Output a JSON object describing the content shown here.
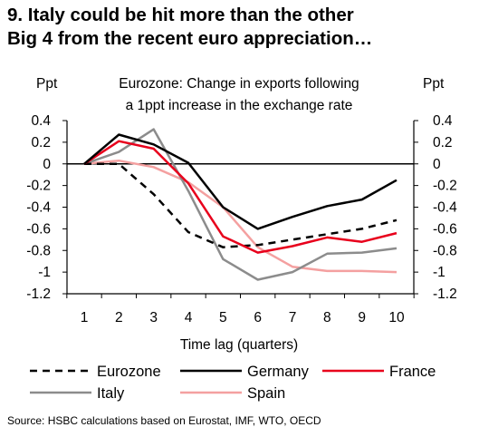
{
  "title_line1": "9. Italy could be hit more than the other",
  "title_line2": "Big 4 from the recent euro appreciation…",
  "source": "Source: HSBC calculations based on Eurostat, IMF, WTO, OECD",
  "chart_data": {
    "type": "line",
    "title_line1": "Eurozone: Change in exports following",
    "title_line2": "a 1ppt increase in the exchange rate",
    "xlabel": "Time lag (quarters)",
    "ylabel_left": "Ppt",
    "ylabel_right": "Ppt",
    "x": [
      1,
      2,
      3,
      4,
      5,
      6,
      7,
      8,
      9,
      10
    ],
    "x_tick_labels": [
      "1",
      "2",
      "3",
      "4",
      "5",
      "6",
      "7",
      "8",
      "9",
      "10"
    ],
    "ylim": [
      -1.2,
      0.4
    ],
    "y_ticks": [
      0.4,
      0.2,
      0,
      -0.2,
      -0.4,
      -0.6,
      -0.8,
      -1,
      -1.2
    ],
    "y_tick_labels": [
      "0.4",
      "0.2",
      "0",
      "-0.2",
      "-0.4",
      "-0.6",
      "-0.8",
      "-1",
      "-1.2"
    ],
    "grid": false,
    "legend_position": "bottom",
    "series": [
      {
        "name": "Eurozone",
        "color": "#000000",
        "style": "dashed",
        "values": [
          0,
          0.0,
          -0.28,
          -0.63,
          -0.77,
          -0.75,
          -0.7,
          -0.65,
          -0.6,
          -0.52
        ]
      },
      {
        "name": "Germany",
        "color": "#000000",
        "style": "solid",
        "values": [
          0,
          0.27,
          0.18,
          0.01,
          -0.4,
          -0.6,
          -0.49,
          -0.39,
          -0.33,
          -0.15
        ]
      },
      {
        "name": "France",
        "color": "#e8001c",
        "style": "solid",
        "values": [
          0,
          0.21,
          0.14,
          -0.18,
          -0.67,
          -0.82,
          -0.76,
          -0.68,
          -0.72,
          -0.64
        ]
      },
      {
        "name": "Italy",
        "color": "#8c8c8c",
        "style": "solid",
        "values": [
          0,
          0.11,
          0.32,
          -0.25,
          -0.88,
          -1.07,
          -1.0,
          -0.83,
          -0.82,
          -0.78
        ]
      },
      {
        "name": "Spain",
        "color": "#f4a0a0",
        "style": "solid",
        "values": [
          0,
          0.03,
          -0.03,
          -0.17,
          -0.4,
          -0.77,
          -0.95,
          -0.99,
          -0.99,
          -1.0
        ]
      }
    ]
  }
}
